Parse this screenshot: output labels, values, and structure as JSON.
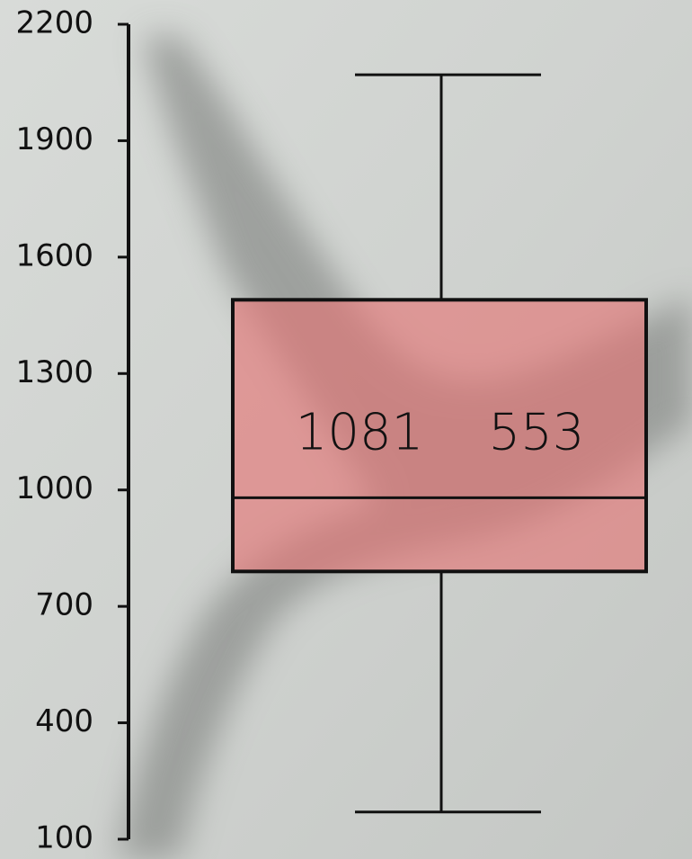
{
  "chart_data": {
    "type": "box",
    "box": {
      "min": 170,
      "q1": 790,
      "median": 980,
      "q3": 1490,
      "max": 2070,
      "color": "#e57272"
    },
    "annotations": [
      1081,
      553
    ],
    "ylim": [
      100,
      2200
    ],
    "yticks": [
      100,
      400,
      700,
      1000,
      1300,
      1600,
      1900,
      2200
    ]
  }
}
